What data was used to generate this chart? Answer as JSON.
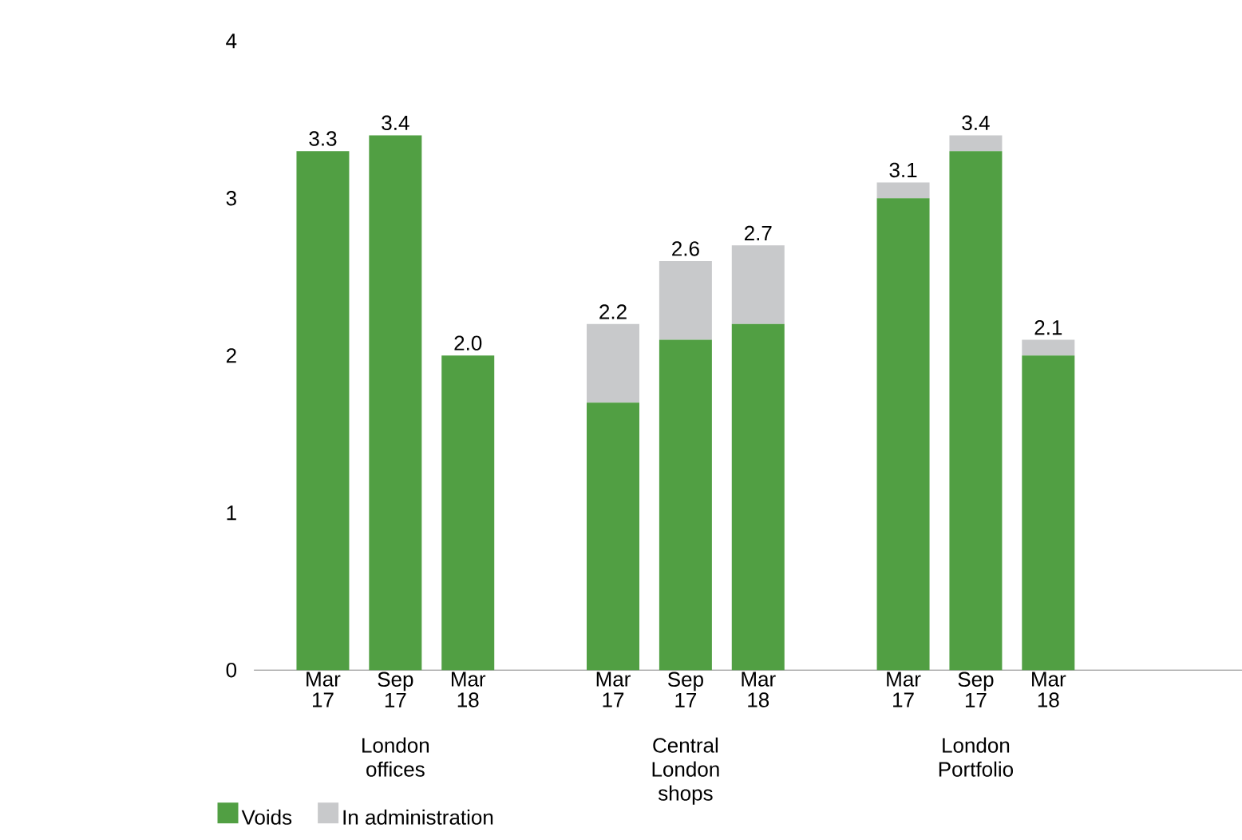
{
  "chart_data": {
    "type": "bar",
    "stacked": true,
    "categories": [
      "Mar 17",
      "Sep 17",
      "Mar 18",
      null,
      "Mar 17",
      "Sep 17",
      "Mar 18",
      null,
      "Mar 17",
      "Sep 17",
      "Mar 18"
    ],
    "series": [
      {
        "name": "Voids",
        "color": "#519f43",
        "values": [
          3.3,
          3.4,
          2.0,
          null,
          1.7,
          2.1,
          2.2,
          null,
          3.0,
          3.3,
          2.0
        ]
      },
      {
        "name": "In administration",
        "color": "#c8c9cb",
        "values": [
          null,
          null,
          null,
          null,
          0.5,
          0.5,
          0.5,
          null,
          0.1,
          0.1,
          0.1
        ]
      }
    ],
    "totals": [
      "3.3",
      "3.4",
      "2.0",
      null,
      "2.2",
      "2.6",
      "2.7",
      null,
      "3.1",
      "3.4",
      "2.1"
    ],
    "annotations": [
      "London offices",
      "Central London shops",
      "London Portfolio"
    ],
    "ylim": [
      0,
      4
    ],
    "yticks": [
      0,
      1,
      2,
      3,
      4
    ],
    "grid": false,
    "legend": "bottom left"
  }
}
